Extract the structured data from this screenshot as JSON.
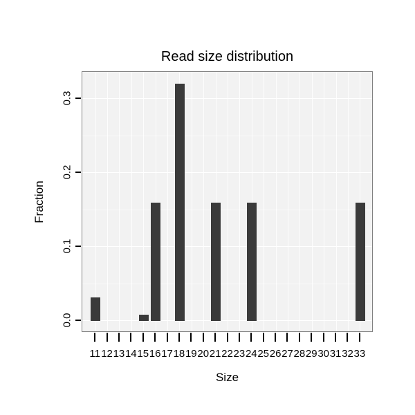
{
  "chart_data": {
    "type": "bar",
    "title": "Read size distribution",
    "xlabel": "Size",
    "ylabel": "Fraction",
    "categories": [
      11,
      12,
      13,
      14,
      15,
      16,
      17,
      18,
      19,
      20,
      21,
      22,
      23,
      24,
      25,
      26,
      27,
      28,
      29,
      30,
      31,
      32,
      33
    ],
    "values": [
      0.032,
      0,
      0,
      0,
      0.008,
      0.16,
      0,
      0.32,
      0,
      0,
      0.16,
      0,
      0,
      0.16,
      0,
      0,
      0,
      0,
      0,
      0,
      0,
      0,
      0.16
    ],
    "yticks": [
      0.0,
      0.1,
      0.2,
      0.3
    ],
    "yticks_minor": [
      0.05,
      0.15,
      0.25
    ],
    "ylim": [
      -0.016,
      0.336
    ],
    "xlim": [
      9.9,
      34.1
    ],
    "bar_width_units": 0.8,
    "grid": true,
    "legend_position": "none",
    "colors": {
      "bar": "#3a3a3a",
      "panel_bg": "#f2f2f2",
      "grid_major": "#ffffff",
      "panel_border": "#808080",
      "tick": "#000000",
      "text": "#000000"
    }
  }
}
